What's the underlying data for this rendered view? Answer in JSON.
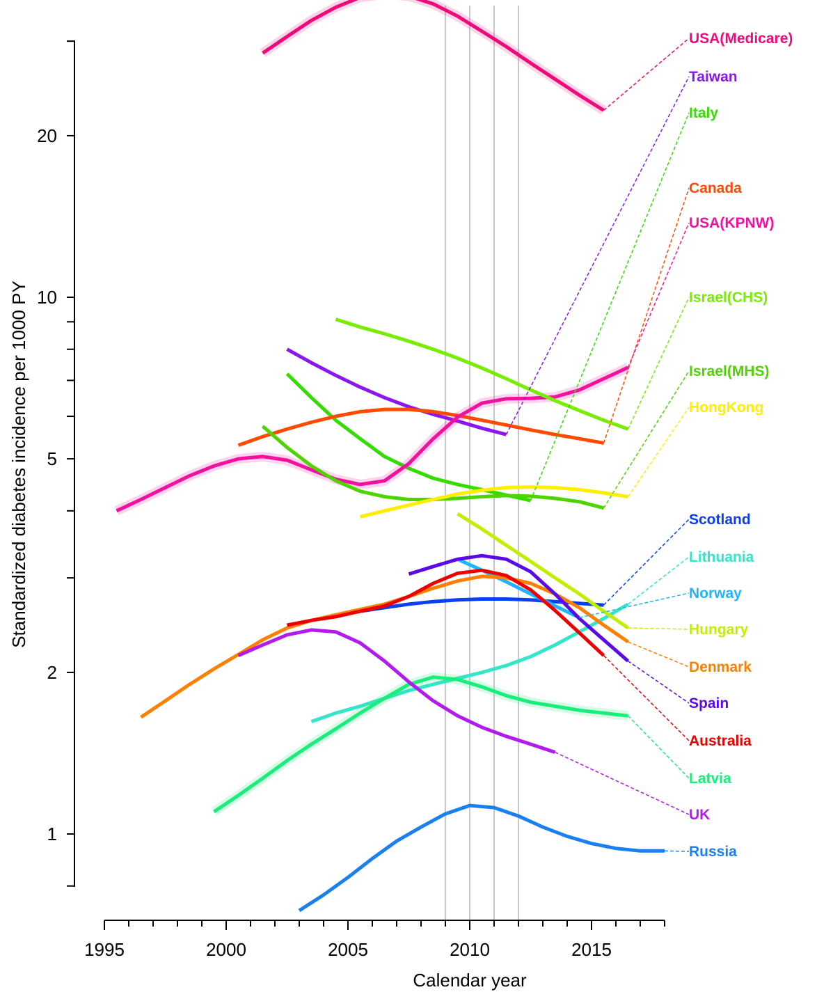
{
  "chart_data": {
    "type": "line",
    "title": "",
    "xlabel": "Calendar year",
    "ylabel": "Standardized diabetes incidence per 1000 PY",
    "y_scale": "log",
    "xlim": [
      1994.5,
      2018.5
    ],
    "ylim": [
      0.72,
      40
    ],
    "x_ticks": [
      1995,
      2000,
      2005,
      2010,
      2015
    ],
    "x_tick_labels": [
      "1995",
      "2000",
      "2005",
      "2010",
      "2015"
    ],
    "y_ticks": [
      1,
      2,
      5,
      10,
      20
    ],
    "y_tick_labels": [
      "1",
      "2",
      "5",
      "10",
      "20"
    ],
    "reference_lines_x": [
      2009,
      2010,
      2011,
      2012
    ],
    "grid": false,
    "legend_placement": "right (direct labels with dashed leaders)",
    "series": [
      {
        "name": "USA(Medicare)",
        "color": "#ee0a7a",
        "band": true,
        "x": [
          2001.5,
          2002.5,
          2003.5,
          2004.5,
          2005.5,
          2006.5,
          2007.5,
          2008.5,
          2009.5,
          2010.5,
          2011.5,
          2012.5,
          2013.5,
          2014.5,
          2015.5
        ],
        "y": [
          28.5,
          30.6,
          32.8,
          34.7,
          36.2,
          36.7,
          36.4,
          35.2,
          33.4,
          31.3,
          29.3,
          27.3,
          25.5,
          23.8,
          22.3
        ]
      },
      {
        "name": "Taiwan",
        "color": "#8b17ee",
        "x": [
          2002.5,
          2003.5,
          2004.5,
          2005.5,
          2006.5,
          2007.5,
          2008.5,
          2009.5,
          2010.5,
          2011.5
        ],
        "y": [
          8.0,
          7.55,
          7.15,
          6.8,
          6.5,
          6.25,
          6.05,
          5.88,
          5.7,
          5.55
        ]
      },
      {
        "name": "Italy",
        "color": "#33dd00",
        "x": [
          2002.5,
          2003.5,
          2004.5,
          2005.5,
          2006.5,
          2007.5,
          2008.5,
          2009.5,
          2010.5,
          2011.5,
          2012.5
        ],
        "y": [
          7.2,
          6.5,
          5.9,
          5.45,
          5.05,
          4.8,
          4.6,
          4.48,
          4.38,
          4.28,
          4.18
        ]
      },
      {
        "name": "Canada",
        "color": "#ff4a00",
        "x": [
          2000.5,
          2001.5,
          2002.5,
          2003.5,
          2004.5,
          2005.5,
          2006.5,
          2007.5,
          2008.5,
          2009.5,
          2010.5,
          2011.5,
          2012.5,
          2013.5,
          2014.5,
          2015.5
        ],
        "y": [
          5.3,
          5.5,
          5.68,
          5.85,
          6.0,
          6.12,
          6.18,
          6.18,
          6.12,
          6.02,
          5.9,
          5.78,
          5.66,
          5.55,
          5.45,
          5.35
        ]
      },
      {
        "name": "USA(KPNW)",
        "color": "#f2119f",
        "band": true,
        "x": [
          1995.5,
          1996.5,
          1997.5,
          1998.5,
          1999.5,
          2000.5,
          2001.5,
          2002.5,
          2003.5,
          2004.5,
          2005.5,
          2006.5,
          2007.5,
          2008.5,
          2009.5,
          2010.5,
          2011.5,
          2012.5,
          2013.5,
          2014.5,
          2015.5,
          2016.5
        ],
        "y": [
          4.0,
          4.2,
          4.42,
          4.65,
          4.85,
          5.0,
          5.05,
          4.97,
          4.77,
          4.58,
          4.48,
          4.55,
          4.9,
          5.45,
          5.98,
          6.35,
          6.47,
          6.48,
          6.52,
          6.72,
          7.05,
          7.4
        ]
      },
      {
        "name": "Israel(CHS)",
        "color": "#77ee00",
        "x": [
          2004.5,
          2005.5,
          2006.5,
          2007.5,
          2008.5,
          2009.5,
          2010.5,
          2011.5,
          2012.5,
          2013.5,
          2014.5,
          2015.5,
          2016.5
        ],
        "y": [
          9.1,
          8.8,
          8.55,
          8.28,
          8.0,
          7.7,
          7.38,
          7.05,
          6.72,
          6.42,
          6.15,
          5.9,
          5.68
        ]
      },
      {
        "name": "Israel(MHS)",
        "color": "#4ed400",
        "x": [
          2001.5,
          2002.5,
          2003.5,
          2004.5,
          2005.5,
          2006.5,
          2007.5,
          2008.5,
          2009.5,
          2010.5,
          2011.5,
          2012.5,
          2013.5,
          2014.5,
          2015.5
        ],
        "y": [
          5.75,
          5.25,
          4.85,
          4.55,
          4.35,
          4.25,
          4.2,
          4.2,
          4.22,
          4.25,
          4.27,
          4.26,
          4.22,
          4.16,
          4.05
        ]
      },
      {
        "name": "HongKong",
        "color": "#ffee00",
        "x": [
          2005.5,
          2006.5,
          2007.5,
          2008.5,
          2009.5,
          2010.5,
          2011.5,
          2012.5,
          2013.5,
          2014.5,
          2015.5,
          2016.5
        ],
        "y": [
          3.9,
          4.0,
          4.1,
          4.2,
          4.3,
          4.37,
          4.42,
          4.43,
          4.42,
          4.38,
          4.32,
          4.25
        ]
      },
      {
        "name": "Scotland",
        "color": "#0a40f0",
        "x": [
          2004.5,
          2005.5,
          2006.5,
          2007.5,
          2008.5,
          2009.5,
          2010.5,
          2011.5,
          2012.5,
          2013.5,
          2014.5,
          2015.5
        ],
        "y": [
          2.55,
          2.6,
          2.64,
          2.68,
          2.71,
          2.73,
          2.74,
          2.74,
          2.73,
          2.71,
          2.69,
          2.67
        ]
      },
      {
        "name": "Lithuania",
        "color": "#33e6c8",
        "x": [
          2003.5,
          2004.5,
          2005.5,
          2006.5,
          2007.5,
          2008.5,
          2009.5,
          2010.5,
          2011.5,
          2012.5,
          2013.5,
          2014.5,
          2015.5,
          2016.5
        ],
        "y": [
          1.62,
          1.68,
          1.73,
          1.79,
          1.85,
          1.9,
          1.95,
          2.0,
          2.06,
          2.14,
          2.25,
          2.38,
          2.52,
          2.68
        ]
      },
      {
        "name": "Norway",
        "color": "#1eb4ff",
        "x": [
          2009.5,
          2010.5,
          2011.5,
          2012.5,
          2013.5,
          2014.5
        ],
        "y": [
          3.25,
          3.1,
          2.95,
          2.8,
          2.66,
          2.53
        ]
      },
      {
        "name": "Hungary",
        "color": "#c2ee00",
        "x": [
          2009.5,
          2010.5,
          2011.5,
          2012.5,
          2013.5,
          2014.5,
          2015.5,
          2016.5
        ],
        "y": [
          3.95,
          3.7,
          3.45,
          3.22,
          3.0,
          2.8,
          2.6,
          2.42
        ]
      },
      {
        "name": "Denmark",
        "color": "#ff8000",
        "x": [
          1996.5,
          1997.5,
          1998.5,
          1999.5,
          2000.5,
          2001.5,
          2002.5,
          2003.5,
          2004.5,
          2005.5,
          2006.5,
          2007.5,
          2008.5,
          2009.5,
          2010.5,
          2011.5,
          2012.5,
          2013.5,
          2014.5,
          2015.5,
          2016.5
        ],
        "y": [
          1.65,
          1.77,
          1.9,
          2.03,
          2.16,
          2.3,
          2.42,
          2.5,
          2.56,
          2.62,
          2.68,
          2.77,
          2.87,
          2.96,
          3.02,
          3.0,
          2.93,
          2.8,
          2.64,
          2.45,
          2.28
        ]
      },
      {
        "name": "Spain",
        "color": "#5a0ae6",
        "x": [
          2007.5,
          2008.5,
          2009.5,
          2010.5,
          2011.5,
          2012.5,
          2013.5,
          2014.5,
          2015.5,
          2016.5
        ],
        "y": [
          3.05,
          3.15,
          3.25,
          3.3,
          3.25,
          3.08,
          2.8,
          2.52,
          2.3,
          2.1
        ]
      },
      {
        "name": "Australia",
        "color": "#ee0000",
        "x": [
          2002.5,
          2003.5,
          2004.5,
          2005.5,
          2006.5,
          2007.5,
          2008.5,
          2009.5,
          2010.5,
          2011.5,
          2012.5,
          2013.5,
          2014.5,
          2015.5
        ],
        "y": [
          2.45,
          2.5,
          2.54,
          2.6,
          2.66,
          2.77,
          2.93,
          3.06,
          3.1,
          3.03,
          2.85,
          2.61,
          2.37,
          2.15
        ]
      },
      {
        "name": "Latvia",
        "color": "#1aee7a",
        "band": true,
        "x": [
          1999.5,
          2000.5,
          2001.5,
          2002.5,
          2003.5,
          2004.5,
          2005.5,
          2006.5,
          2007.5,
          2008.5,
          2009.5,
          2010.5,
          2011.5,
          2012.5,
          2013.5,
          2014.5,
          2015.5,
          2016.5
        ],
        "y": [
          1.1,
          1.18,
          1.27,
          1.37,
          1.47,
          1.57,
          1.68,
          1.79,
          1.9,
          1.96,
          1.94,
          1.88,
          1.81,
          1.76,
          1.73,
          1.7,
          1.68,
          1.66
        ]
      },
      {
        "name": "UK",
        "color": "#b21aee",
        "x": [
          2000.5,
          2001.5,
          2002.5,
          2003.5,
          2004.5,
          2005.5,
          2006.5,
          2007.5,
          2008.5,
          2009.5,
          2010.5,
          2011.5,
          2012.5,
          2013.5
        ],
        "y": [
          2.15,
          2.25,
          2.35,
          2.4,
          2.38,
          2.27,
          2.1,
          1.92,
          1.77,
          1.66,
          1.58,
          1.52,
          1.47,
          1.42
        ]
      },
      {
        "name": "Russia",
        "color": "#1a80f0",
        "x": [
          2003.0,
          2004.0,
          2005.0,
          2006.0,
          2007.0,
          2008.0,
          2009.0,
          2010.0,
          2011.0,
          2012.0,
          2013.0,
          2014.0,
          2015.0,
          2016.0,
          2017.0,
          2018.0
        ],
        "y": [
          0.72,
          0.77,
          0.83,
          0.9,
          0.97,
          1.03,
          1.09,
          1.13,
          1.12,
          1.08,
          1.03,
          0.99,
          0.96,
          0.94,
          0.93,
          0.93
        ]
      }
    ],
    "labels": [
      "USA(Medicare)",
      "Taiwan",
      "Italy",
      "Canada",
      "USA(KPNW)",
      "Israel(CHS)",
      "Israel(MHS)",
      "HongKong",
      "Scotland",
      "Lithuania",
      "Norway",
      "Hungary",
      "Denmark",
      "Spain",
      "Australia",
      "Latvia",
      "UK",
      "Russia"
    ]
  }
}
